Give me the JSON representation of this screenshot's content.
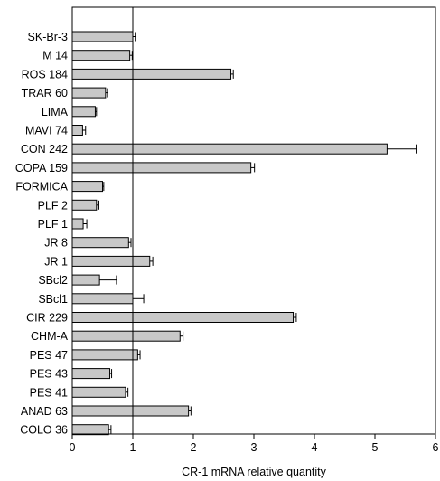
{
  "chart_data": {
    "type": "bar",
    "orientation": "horizontal",
    "xlabel": "CR-1 mRNA relative quantity",
    "ylabel": "",
    "xlim": [
      0,
      6
    ],
    "xticks": [
      0,
      1,
      2,
      3,
      4,
      5,
      6
    ],
    "reference_line": 1,
    "grid": false,
    "legend": "none",
    "bar_color": "#c8c8c8",
    "categories": [
      "SK-Br-3",
      "M 14",
      "ROS 184",
      "TRAR 60",
      "LIMA",
      "MAVI 74",
      "CON 242",
      "COPA 159",
      "FORMICA",
      "PLF 2",
      "PLF 1",
      "JR 8",
      "JR 1",
      "SBcl2",
      "SBcl1",
      "CIR 229",
      "CHM-A",
      "PES 47",
      "PES 43",
      "PES 41",
      "ANAD 63",
      "COLO 36"
    ],
    "values": [
      1.0,
      0.95,
      2.62,
      0.55,
      0.38,
      0.17,
      5.2,
      2.95,
      0.5,
      0.4,
      0.18,
      0.93,
      1.28,
      0.45,
      1.0,
      3.65,
      1.78,
      1.08,
      0.62,
      0.88,
      1.92,
      0.6
    ],
    "errors": [
      0.04,
      0.04,
      0.04,
      0.03,
      0.02,
      0.05,
      0.48,
      0.06,
      0.02,
      0.04,
      0.06,
      0.04,
      0.05,
      0.28,
      0.18,
      0.05,
      0.05,
      0.04,
      0.03,
      0.04,
      0.04,
      0.04
    ]
  }
}
